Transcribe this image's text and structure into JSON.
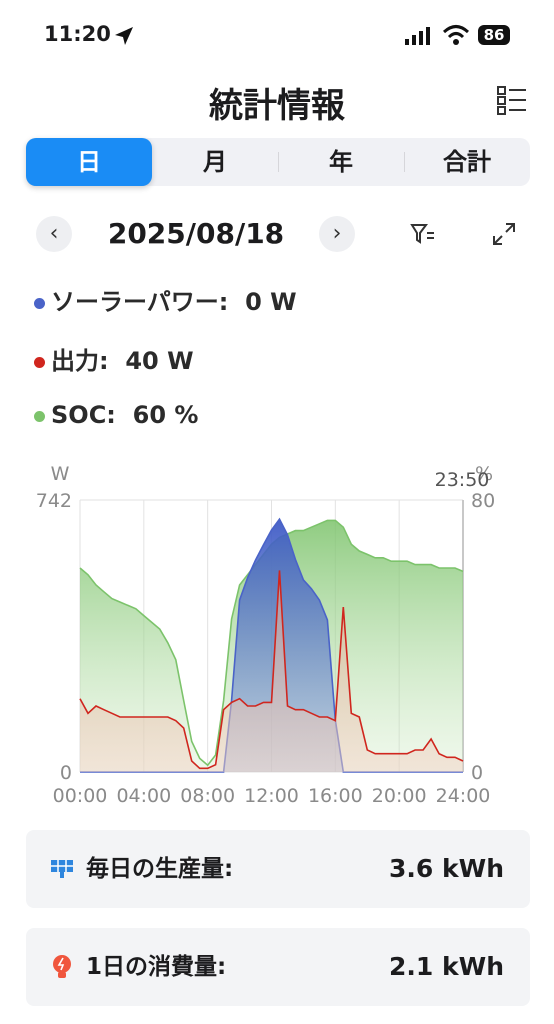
{
  "status_bar": {
    "time": "11:20",
    "battery": "86"
  },
  "header": {
    "title": "統計情報"
  },
  "tabs": [
    "日",
    "月",
    "年",
    "合計"
  ],
  "date": "2025/08/18",
  "chart_data": {
    "type": "area",
    "x": [
      0,
      0.5,
      1,
      1.5,
      2,
      2.5,
      3,
      3.5,
      4,
      4.5,
      5,
      5.5,
      6,
      6.5,
      7,
      7.5,
      8,
      8.5,
      9,
      9.5,
      10,
      10.5,
      11,
      11.5,
      12,
      12.5,
      13,
      13.5,
      14,
      14.5,
      15,
      15.5,
      16,
      16.5,
      17,
      17.5,
      18,
      18.5,
      19,
      19.5,
      20,
      20.5,
      21,
      21.5,
      22,
      22.5,
      23,
      23.5,
      24
    ],
    "xlim": [
      0,
      24
    ],
    "xticks": [
      {
        "value": 0,
        "label": "00:00"
      },
      {
        "value": 4,
        "label": "04:00"
      },
      {
        "value": 8,
        "label": "08:00"
      },
      {
        "value": 12,
        "label": "12:00"
      },
      {
        "value": 16,
        "label": "16:00"
      },
      {
        "value": 20,
        "label": "20:00"
      },
      {
        "value": 24,
        "label": "24:00"
      }
    ],
    "ylim": [
      0,
      742
    ],
    "yticks": [
      0,
      742
    ],
    "y2lim": [
      0,
      80
    ],
    "y2ticks": [
      0,
      80
    ],
    "y_label": "W",
    "y2_label": "%",
    "cursor_label": "23:50",
    "grid": true,
    "series": [
      {
        "name": "ソーラーパワー:",
        "reading": "0 W",
        "color": "#4a63c8",
        "values": [
          0,
          0,
          0,
          0,
          0,
          0,
          0,
          0,
          0,
          0,
          0,
          0,
          0,
          0,
          0,
          0,
          0,
          0,
          0,
          196,
          469,
          530,
          578,
          620,
          660,
          690,
          647,
          580,
          524,
          500,
          469,
          415,
          142,
          0,
          0,
          0,
          0,
          0,
          0,
          0,
          0,
          0,
          0,
          0,
          0,
          0,
          0,
          0,
          0
        ]
      },
      {
        "name": "出力:",
        "reading": "40 W",
        "color": "#d0261e",
        "values": [
          200,
          160,
          180,
          170,
          160,
          150,
          150,
          150,
          150,
          150,
          150,
          150,
          140,
          120,
          30,
          10,
          10,
          20,
          170,
          190,
          200,
          180,
          180,
          190,
          190,
          550,
          180,
          170,
          170,
          160,
          150,
          150,
          140,
          450,
          160,
          150,
          60,
          50,
          50,
          50,
          50,
          50,
          60,
          60,
          90,
          50,
          40,
          40,
          30
        ]
      },
      {
        "name": "SOC:",
        "reading": "60 %",
        "color": "#7cc36b",
        "axis": "y2",
        "values": [
          60,
          58,
          55,
          53,
          51,
          50,
          49,
          48,
          46,
          44,
          42,
          38,
          33,
          21,
          9,
          4,
          2,
          5,
          21,
          45,
          55,
          58,
          61,
          64,
          67,
          69,
          70,
          71,
          71,
          72,
          73,
          74,
          74,
          72,
          67,
          65,
          64,
          63,
          63,
          62,
          62,
          62,
          61,
          61,
          61,
          60,
          60,
          60,
          59
        ]
      }
    ]
  },
  "cards": [
    {
      "label": "毎日の生産量:",
      "value": "3.6 kWh"
    },
    {
      "label": "1日の消費量:",
      "value": "2.1 kWh"
    }
  ]
}
